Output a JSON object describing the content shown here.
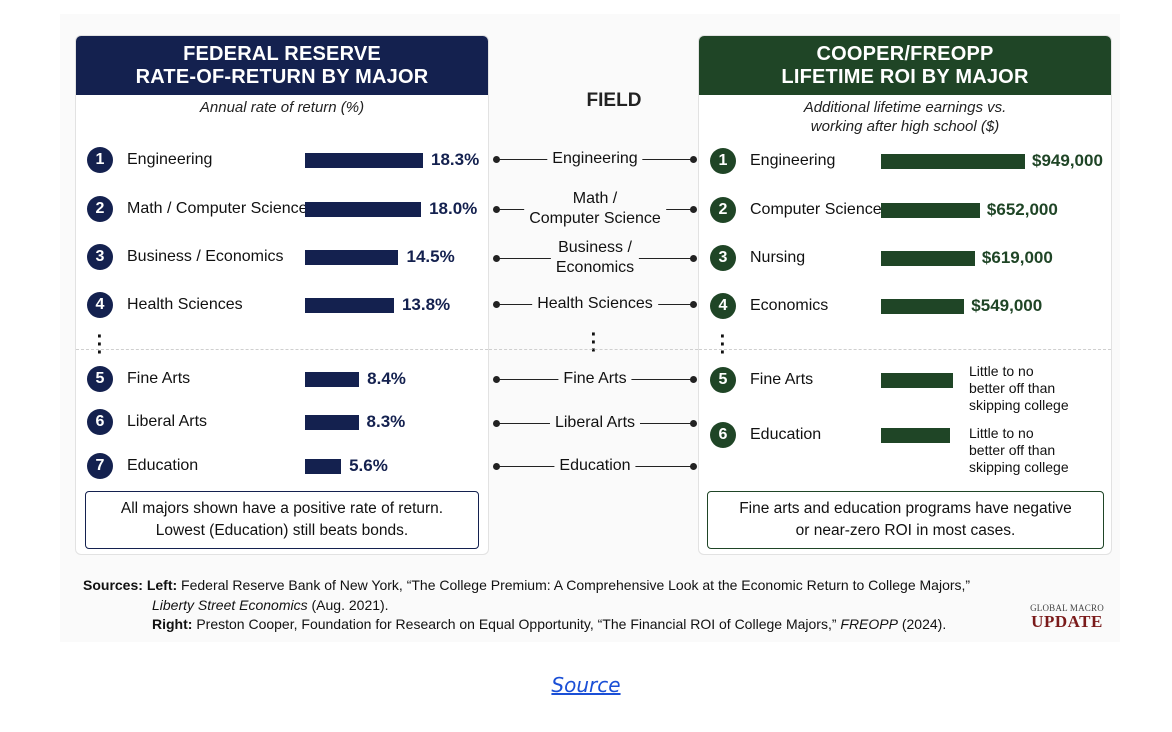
{
  "chart_data": [
    {
      "type": "bar",
      "orientation": "horizontal",
      "title": "FEDERAL RESERVE RATE-OF-RETURN BY MAJOR",
      "subtitle": "Annual rate of return (%)",
      "categories": [
        "Engineering",
        "Math / Computer Science",
        "Business / Economics",
        "Health Sciences",
        "Fine Arts",
        "Liberal Arts",
        "Education"
      ],
      "values": [
        18.3,
        18.0,
        14.5,
        13.8,
        8.4,
        8.3,
        5.6
      ],
      "value_labels": [
        "18.3%",
        "18.0%",
        "14.5%",
        "13.8%",
        "8.4%",
        "8.3%",
        "5.6%"
      ],
      "ranks": [
        "1",
        "2",
        "3",
        "4",
        "5",
        "6",
        "7"
      ],
      "color": "#14214f",
      "note": "All majors shown have a positive rate of return. Lowest (Education) still beats bonds."
    },
    {
      "type": "bar",
      "orientation": "horizontal",
      "title": "COOPER/FREOPP LIFETIME ROI BY MAJOR",
      "subtitle": "Additional lifetime earnings vs. working after high school ($)",
      "categories": [
        "Engineering",
        "Computer Science",
        "Nursing",
        "Economics",
        "Fine Arts",
        "Education"
      ],
      "values": [
        949000,
        652000,
        619000,
        549000,
        null,
        null
      ],
      "value_labels": [
        "$949,000",
        "$652,000",
        "$619,000",
        "$549,000",
        "Little to no better off than skipping college",
        "Little to no better off than skipping college"
      ],
      "ranks": [
        "1",
        "2",
        "3",
        "4",
        "5",
        "6"
      ],
      "color": "#1f4526",
      "note": "Fine arts and education programs have negative or near-zero ROI in most cases."
    }
  ],
  "left": {
    "title_line1": "FEDERAL RESERVE",
    "title_line2": "RATE-OF-RETURN BY MAJOR",
    "subtitle": "Annual rate of return (%)",
    "note_line1": "All majors shown have a positive rate of return.",
    "note_line2": "Lowest (Education) still beats bonds."
  },
  "right": {
    "title_line1": "COOPER/FREOPP",
    "title_line2": "LIFETIME ROI BY MAJOR",
    "subtitle_line1": "Additional lifetime earnings vs.",
    "subtitle_line2": "working after high school ($)",
    "note_line1": "Fine arts and education programs have negative",
    "note_line2": "or near-zero ROI in most cases.",
    "weak_note_line1": "Little to no",
    "weak_note_line2": "better off than",
    "weak_note_line3": "skipping college"
  },
  "field": {
    "title": "FIELD",
    "labels": [
      [
        "Engineering"
      ],
      [
        "Math /",
        "Computer Science"
      ],
      [
        "Business /",
        "Economics"
      ],
      [
        "Health Sciences"
      ],
      [
        "Fine Arts"
      ],
      [
        "Liberal Arts"
      ],
      [
        "Education"
      ]
    ]
  },
  "sources": {
    "heading": "Sources:",
    "left_label": "Left:",
    "left_text": "Federal Reserve Bank of New York, “The College Premium: A Comprehensive Look at the Economic Return to College Majors,”",
    "left_pub": "Liberty Street Economics",
    "left_date": "(Aug. 2021).",
    "right_label": "Right:",
    "right_text": "Preston Cooper, Foundation for Research on Equal Opportunity, “The Financial ROI of College Majors,”",
    "right_pub": "FREOPP",
    "right_date": "(2024)."
  },
  "logo": {
    "top": "GLOBAL MACRO",
    "main": "UPDATE"
  },
  "source_link": "Source"
}
